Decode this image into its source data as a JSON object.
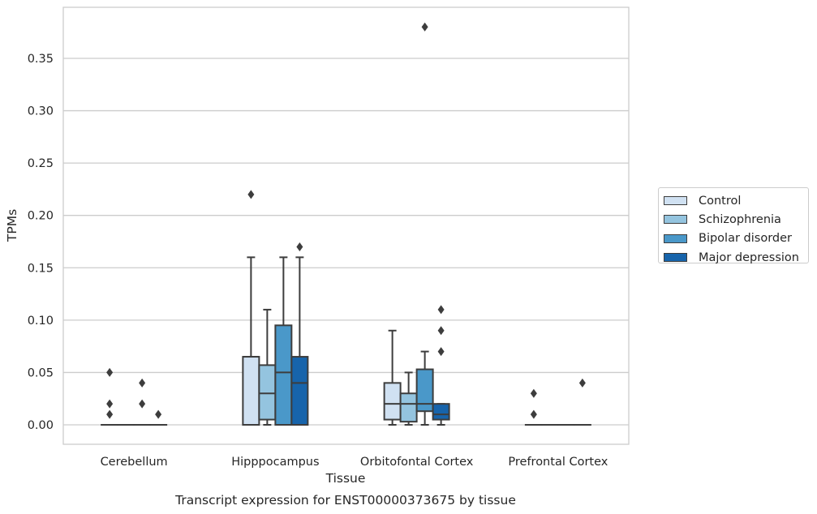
{
  "chart_data": {
    "type": "box",
    "title": "Transcript expression for ENST00000373675 by tissue",
    "xlabel": "Tissue",
    "ylabel": "TPMs",
    "categories": [
      "Cerebellum",
      "Hipppocampus",
      "Orbitofontal Cortex",
      "Prefrontal Cortex"
    ],
    "ylim": [
      -0.018,
      0.398
    ],
    "yticks": [
      "0.00",
      "0.05",
      "0.10",
      "0.15",
      "0.20",
      "0.25",
      "0.30",
      "0.35"
    ],
    "ytick_values": [
      0,
      0.05,
      0.1,
      0.15,
      0.2,
      0.25,
      0.3,
      0.35
    ],
    "grid": "horizontal",
    "legend_position": "right",
    "series": [
      {
        "name": "Control",
        "color": "#d0e1f2",
        "boxes": [
          {
            "min": 0,
            "q1": 0,
            "median": 0,
            "q3": 0,
            "max": 0,
            "outliers": [
              0.05,
              0.02,
              0.01
            ]
          },
          {
            "min": 0,
            "q1": 0,
            "median": 0.065,
            "q3": 0.065,
            "max": 0.16,
            "outliers": [
              0.22
            ]
          },
          {
            "min": 0,
            "q1": 0.005,
            "median": 0.02,
            "q3": 0.04,
            "max": 0.09,
            "outliers": []
          },
          {
            "min": 0,
            "q1": 0,
            "median": 0,
            "q3": 0,
            "max": 0,
            "outliers": [
              0.03,
              0.01
            ]
          }
        ]
      },
      {
        "name": "Schizophrenia",
        "color": "#94c4df",
        "boxes": [
          {
            "min": 0,
            "q1": 0,
            "median": 0,
            "q3": 0,
            "max": 0,
            "outliers": []
          },
          {
            "min": 0,
            "q1": 0.005,
            "median": 0.03,
            "q3": 0.057,
            "max": 0.11,
            "outliers": []
          },
          {
            "min": 0,
            "q1": 0.003,
            "median": 0.02,
            "q3": 0.03,
            "max": 0.05,
            "outliers": []
          },
          {
            "min": 0,
            "q1": 0,
            "median": 0,
            "q3": 0,
            "max": 0,
            "outliers": []
          }
        ]
      },
      {
        "name": "Bipolar disorder",
        "color": "#4a98c9",
        "boxes": [
          {
            "min": 0,
            "q1": 0,
            "median": 0,
            "q3": 0,
            "max": 0,
            "outliers": [
              0.04,
              0.02
            ]
          },
          {
            "min": 0,
            "q1": 0,
            "median": 0.05,
            "q3": 0.095,
            "max": 0.16,
            "outliers": []
          },
          {
            "min": 0,
            "q1": 0.013,
            "median": 0.02,
            "q3": 0.053,
            "max": 0.07,
            "outliers": [
              0.38
            ]
          },
          {
            "min": 0,
            "q1": 0,
            "median": 0,
            "q3": 0,
            "max": 0,
            "outliers": []
          }
        ]
      },
      {
        "name": "Major depression",
        "color": "#1764ab",
        "boxes": [
          {
            "min": 0,
            "q1": 0,
            "median": 0,
            "q3": 0,
            "max": 0,
            "outliers": [
              0.01
            ]
          },
          {
            "min": 0,
            "q1": 0,
            "median": 0.04,
            "q3": 0.065,
            "max": 0.16,
            "outliers": [
              0.17
            ]
          },
          {
            "min": 0,
            "q1": 0.005,
            "median": 0.01,
            "q3": 0.02,
            "max": 0.02,
            "outliers": [
              0.11,
              0.09,
              0.07
            ]
          },
          {
            "min": 0,
            "q1": 0,
            "median": 0,
            "q3": 0,
            "max": 0,
            "outliers": [
              0.04
            ]
          }
        ]
      }
    ]
  }
}
